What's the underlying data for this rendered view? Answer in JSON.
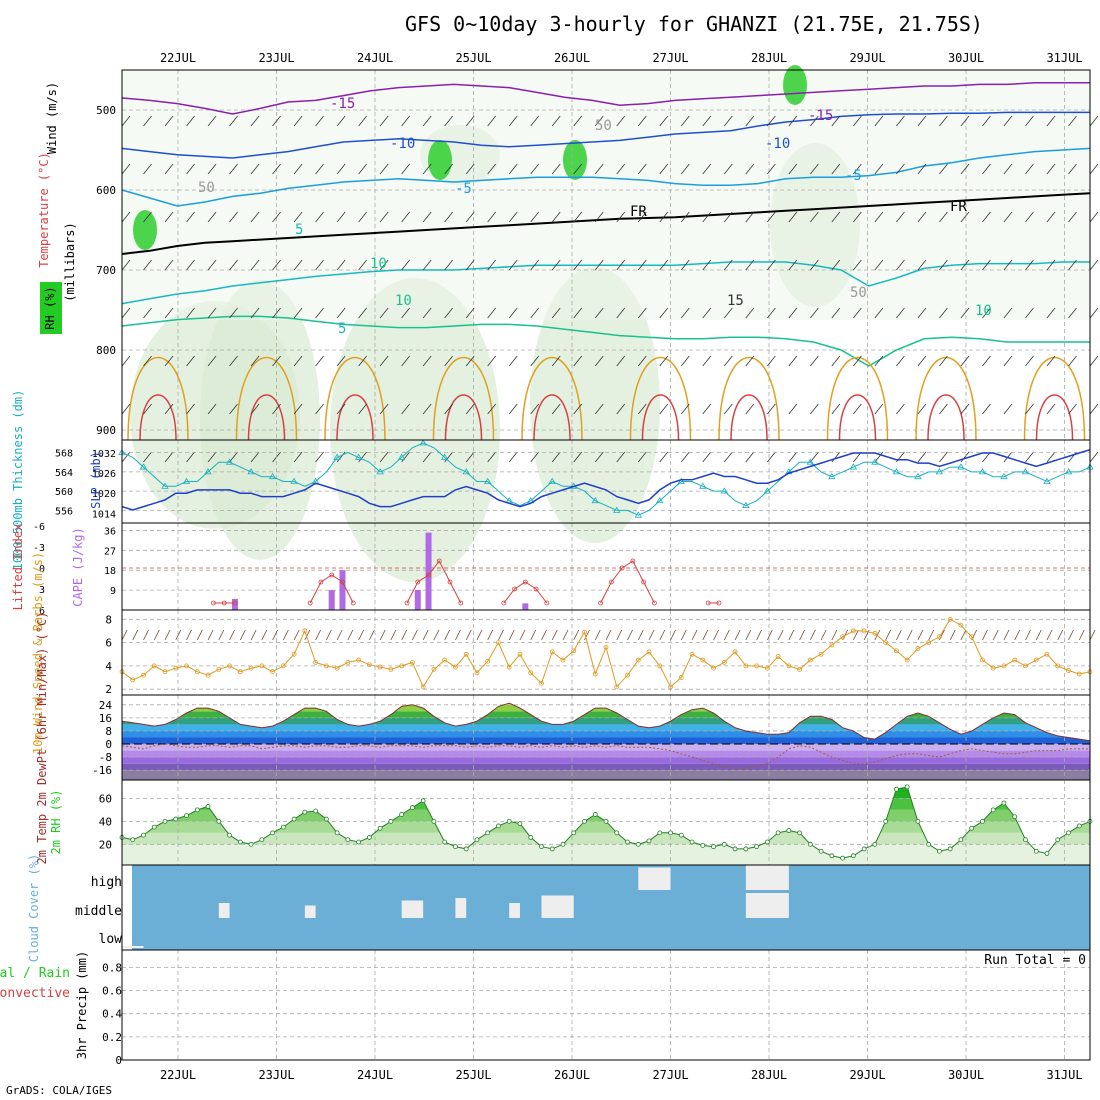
{
  "title": "GFS 0~10day 3-hourly for GHANZI (21.75E, 21.75S)",
  "footer": "GrADS: COLA/IGES",
  "colors": {
    "grid": "#aaaaaa",
    "rh": "#22cc22",
    "temp_cyan": "#1ab0c0",
    "slp": "#1f3fc8",
    "cape": "#b06ae6",
    "li": "#d84040",
    "wind10": "#e09a20",
    "cloud": "#6baed6"
  },
  "chart_data": [
    {
      "type": "line",
      "panel": "upper-air",
      "ylabel": "(millibars)",
      "side_labels": [
        "Wind (m/s)",
        "Temperature (°C)",
        "RH (%)"
      ],
      "x_ticks": [
        "22JUL",
        "23JUL",
        "24JUL",
        "25JUL",
        "26JUL",
        "27JUL",
        "28JUL",
        "29JUL",
        "30JUL",
        "31JUL"
      ],
      "y_ticks": [
        500,
        600,
        700,
        800,
        900
      ],
      "contour_labels": [
        "-15",
        "-15",
        "-10",
        "-10",
        "-5",
        "-5",
        "FR",
        "FR",
        "5",
        "10",
        "10",
        "15",
        "5",
        "50",
        "50",
        "50",
        "10"
      ],
      "series": [
        {
          "name": "-15",
          "values": [
            485,
            488,
            492,
            498,
            505,
            498,
            490,
            488,
            482,
            476,
            472,
            470,
            468,
            470,
            472,
            478,
            484,
            488,
            494,
            492,
            488,
            486,
            484,
            482,
            480,
            478,
            476,
            474,
            472,
            470,
            470,
            468,
            468,
            466,
            466,
            466
          ]
        },
        {
          "name": "-10",
          "values": [
            548,
            552,
            556,
            558,
            560,
            556,
            552,
            546,
            540,
            538,
            536,
            538,
            540,
            544,
            546,
            544,
            542,
            540,
            538,
            534,
            530,
            528,
            526,
            520,
            515,
            512,
            508,
            506,
            505,
            505,
            504,
            504,
            503,
            503,
            503,
            503
          ]
        },
        {
          "name": "-5",
          "values": [
            600,
            610,
            620,
            615,
            608,
            604,
            598,
            594,
            590,
            588,
            586,
            588,
            590,
            588,
            586,
            584,
            584,
            584,
            586,
            588,
            592,
            594,
            594,
            592,
            586,
            584,
            584,
            582,
            578,
            570,
            566,
            560,
            556,
            552,
            550,
            548
          ]
        },
        {
          "name": "FR",
          "values": [
            680,
            676,
            670,
            666,
            664,
            662,
            660,
            658,
            656,
            654,
            652,
            650,
            648,
            646,
            644,
            642,
            640,
            638,
            636,
            635,
            634,
            632,
            630,
            628,
            626,
            624,
            622,
            620,
            618,
            616,
            614,
            612,
            610,
            608,
            606,
            604
          ]
        },
        {
          "name": "5",
          "values": [
            742,
            736,
            730,
            726,
            720,
            716,
            712,
            708,
            705,
            702,
            700,
            700,
            700,
            698,
            696,
            694,
            694,
            694,
            694,
            694,
            694,
            692,
            690,
            690,
            690,
            694,
            700,
            720,
            710,
            698,
            694,
            692,
            692,
            692,
            690,
            690
          ]
        },
        {
          "name": "10",
          "values": [
            770,
            766,
            762,
            760,
            758,
            758,
            760,
            764,
            768,
            770,
            772,
            772,
            770,
            768,
            768,
            770,
            774,
            778,
            782,
            784,
            786,
            786,
            784,
            784,
            786,
            790,
            800,
            820,
            800,
            786,
            784,
            786,
            790,
            790,
            790,
            790
          ]
        }
      ]
    },
    {
      "type": "line",
      "panel": "thickness-slp",
      "ylabel_left": "1000-500mb Thickness (dm)",
      "ylabel_right": "SLP (mb)",
      "y_ticks_left": [
        556,
        560,
        564,
        568
      ],
      "y_ticks_right": [
        1014,
        1020,
        1026,
        1032
      ],
      "series": [
        {
          "name": "Thickness",
          "values": [
            568,
            567,
            565,
            563,
            561,
            561,
            562,
            562,
            564,
            566,
            566,
            565,
            564,
            563,
            563,
            562,
            562,
            561,
            562,
            564,
            567,
            568,
            567,
            566,
            564,
            565,
            567,
            569,
            570,
            569,
            567,
            565,
            564,
            562,
            562,
            560,
            558,
            557,
            558,
            560,
            562,
            561,
            561,
            560,
            558,
            557,
            556,
            556,
            555,
            556,
            558,
            560,
            562,
            562,
            561,
            560,
            560,
            558,
            557,
            558,
            560,
            562,
            564,
            566,
            566,
            564,
            563,
            564,
            565,
            566,
            566,
            565,
            564,
            563,
            563,
            564,
            564,
            565,
            565,
            564,
            564,
            563,
            563,
            564,
            564,
            563,
            562,
            563,
            564,
            564,
            565
          ]
        },
        {
          "name": "SLP",
          "values": [
            1016,
            1015,
            1016,
            1017,
            1018,
            1020,
            1020,
            1021,
            1021,
            1021,
            1021,
            1020,
            1020,
            1019,
            1019,
            1019,
            1020,
            1021,
            1023,
            1022,
            1021,
            1020,
            1019,
            1017,
            1016,
            1016,
            1017,
            1018,
            1019,
            1019,
            1019,
            1021,
            1022,
            1021,
            1020,
            1018,
            1017,
            1016,
            1017,
            1019,
            1020,
            1021,
            1022,
            1023,
            1022,
            1021,
            1019,
            1018,
            1017,
            1018,
            1021,
            1023,
            1024,
            1024,
            1025,
            1026,
            1025,
            1025,
            1024,
            1023,
            1023,
            1024,
            1026,
            1027,
            1028,
            1029,
            1030,
            1031,
            1032,
            1032,
            1032,
            1031,
            1030,
            1030,
            1029,
            1029,
            1028,
            1029,
            1030,
            1031,
            1032,
            1032,
            1031,
            1030,
            1029,
            1028,
            1029,
            1030,
            1031,
            1032,
            1033
          ]
        }
      ]
    },
    {
      "type": "bar",
      "panel": "li-cape",
      "ylabel_left": "Lifted Index",
      "ylabel_right": "CAPE (J/kg)",
      "y_ticks_left": [
        "-6",
        "-3",
        "0",
        "3",
        "6"
      ],
      "y_ticks_right": [
        9,
        18,
        27,
        36
      ],
      "cape": [
        [
          10.5,
          5
        ],
        [
          19.5,
          9
        ],
        [
          20.5,
          18
        ],
        [
          27.5,
          9
        ],
        [
          28.5,
          35
        ],
        [
          37.5,
          3
        ]
      ],
      "li": [
        [
          8.5,
          5
        ],
        [
          9.5,
          5
        ],
        [
          10.5,
          5
        ],
        [
          17.5,
          5
        ],
        [
          18.5,
          2
        ],
        [
          19.5,
          1
        ],
        [
          20.5,
          2
        ],
        [
          21.5,
          5
        ],
        [
          26.5,
          5
        ],
        [
          27.5,
          2
        ],
        [
          28.5,
          1
        ],
        [
          29.5,
          -1
        ],
        [
          30.5,
          2
        ],
        [
          31.5,
          5
        ],
        [
          35.5,
          5
        ],
        [
          36.5,
          3
        ],
        [
          37.5,
          2
        ],
        [
          38.5,
          3
        ],
        [
          39.5,
          5
        ],
        [
          44.5,
          5
        ],
        [
          45.5,
          2
        ],
        [
          46.5,
          0
        ],
        [
          47.5,
          -1
        ],
        [
          48.5,
          2
        ],
        [
          49.5,
          5
        ],
        [
          54.5,
          5
        ],
        [
          55.5,
          5
        ]
      ]
    },
    {
      "type": "line",
      "panel": "wind10",
      "ylabel": "10m Wind Speed & Barbs (m/s)",
      "y_ticks": [
        2,
        4,
        6,
        8
      ],
      "series": [
        {
          "name": "Speed",
          "values": [
            3.5,
            2.8,
            3.2,
            4,
            3.5,
            3.8,
            4,
            3.5,
            3.2,
            3.7,
            4,
            3.5,
            3.8,
            4,
            3.5,
            4,
            5,
            7,
            4.3,
            4,
            3.8,
            4.3,
            4.5,
            4.1,
            3.9,
            3.7,
            4,
            4.3,
            2.2,
            3.7,
            4.5,
            3.9,
            5,
            3.4,
            4.4,
            6,
            3.9,
            5,
            3.4,
            2.5,
            5.2,
            4.5,
            5.3,
            6.9,
            3.3,
            5.6,
            2.2,
            3.2,
            4.5,
            5.2,
            4,
            2.2,
            3,
            5,
            4.5,
            3.8,
            4.3,
            5.2,
            4,
            4,
            3.8,
            4.8,
            4,
            3.7,
            4.5,
            5,
            5.8,
            6.5,
            7,
            7,
            6.8,
            6,
            5.3,
            4.5,
            5.5,
            6,
            6.5,
            8,
            7.5,
            6.5,
            4.5,
            3.8,
            4,
            4.5,
            4,
            4.5,
            5,
            4,
            3.6,
            3.3,
            3.5
          ]
        }
      ]
    },
    {
      "type": "area",
      "panel": "temp2m",
      "ylabel": "2m Temp 2m DewPt (6hr Min/Max) (°C)",
      "y_ticks": [
        -16,
        -8,
        0,
        8,
        16,
        24
      ],
      "series": [
        {
          "name": "Temp",
          "values": [
            14,
            13,
            12,
            11,
            12,
            15,
            19,
            22,
            22,
            20,
            16,
            12,
            11,
            10,
            11,
            14,
            18,
            22,
            22,
            20,
            15,
            12,
            11,
            12,
            14,
            18,
            23,
            24,
            22,
            17,
            13,
            11,
            12,
            14,
            18,
            23,
            25,
            22,
            18,
            14,
            12,
            12,
            14,
            18,
            22,
            22,
            19,
            15,
            11,
            10,
            11,
            14,
            18,
            21,
            22,
            19,
            14,
            10,
            8,
            7,
            6,
            6,
            7,
            13,
            17,
            17,
            15,
            10,
            8,
            4,
            3,
            7,
            12,
            17,
            19,
            17,
            13,
            9,
            6,
            8,
            12,
            16,
            19,
            18,
            13,
            10,
            7,
            5,
            4,
            3,
            2
          ]
        },
        {
          "name": "DewPt",
          "values": [
            -1,
            -2,
            -3,
            -1,
            0,
            -1,
            -2,
            -2,
            -1,
            -1,
            -2,
            -1,
            -1,
            -3,
            -2,
            -1,
            -1,
            -2,
            -1,
            -1,
            -2,
            -2,
            -1,
            -1,
            -2,
            -1,
            -1,
            -1,
            -2,
            -1,
            -1,
            -1,
            -2,
            -1,
            -2,
            -1,
            -1,
            -2,
            -1,
            -2,
            -1,
            -2,
            -1,
            -2,
            -1,
            -2,
            -1,
            -2,
            -2,
            -2,
            -3,
            -4,
            -6,
            -8,
            -10,
            -12,
            -14,
            -15,
            -15,
            -14,
            -12,
            -8,
            -3,
            -1,
            -2,
            -5,
            -8,
            -10,
            -12,
            -12,
            -11,
            -9,
            -7,
            -6,
            -6,
            -7,
            -8,
            -6,
            -4,
            -3,
            -4,
            -5,
            -6,
            -6,
            -5,
            -4,
            -4,
            -4,
            -3,
            -3,
            -3
          ]
        }
      ]
    },
    {
      "type": "area",
      "panel": "rh2m",
      "ylabel": "2m RH (%)",
      "y_ticks": [
        20,
        40,
        60
      ],
      "series": [
        {
          "name": "RH",
          "values": [
            26,
            24,
            28,
            35,
            40,
            42,
            45,
            50,
            53,
            40,
            28,
            22,
            20,
            24,
            30,
            35,
            42,
            48,
            49,
            42,
            30,
            24,
            22,
            26,
            34,
            40,
            46,
            52,
            58,
            40,
            22,
            18,
            16,
            24,
            30,
            36,
            40,
            38,
            26,
            18,
            16,
            20,
            30,
            40,
            46,
            40,
            30,
            22,
            20,
            23,
            30,
            30,
            28,
            22,
            19,
            18,
            20,
            16,
            16,
            18,
            22,
            30,
            32,
            30,
            20,
            14,
            10,
            8,
            10,
            16,
            20,
            40,
            68,
            70,
            40,
            20,
            14,
            16,
            24,
            34,
            40,
            50,
            56,
            44,
            24,
            14,
            12,
            24,
            30,
            36,
            40
          ]
        }
      ]
    },
    {
      "type": "heatmap",
      "panel": "cloud",
      "ylabel": "Cloud Cover (%)",
      "y_ticks": [
        "high",
        "middle",
        "low"
      ],
      "blocks": [
        {
          "level": "low",
          "x0": 0,
          "x1": 2,
          "h": 0.25
        },
        {
          "level": "middle",
          "x0": 9,
          "x1": 10,
          "h": 0.6
        },
        {
          "level": "middle",
          "x0": 17,
          "x1": 18,
          "h": 0.5
        },
        {
          "level": "middle",
          "x0": 26,
          "x1": 28,
          "h": 0.7
        },
        {
          "level": "middle",
          "x0": 31,
          "x1": 32,
          "h": 0.8
        },
        {
          "level": "middle",
          "x0": 36,
          "x1": 37,
          "h": 0.6
        },
        {
          "level": "middle",
          "x0": 39,
          "x1": 42,
          "h": 0.9
        },
        {
          "level": "high",
          "x0": 48,
          "x1": 51,
          "h": 0.9
        },
        {
          "level": "high",
          "x0": 58,
          "x1": 62,
          "h": 1.0
        },
        {
          "level": "middle",
          "x0": 58,
          "x1": 62,
          "h": 1.0
        }
      ]
    },
    {
      "type": "bar",
      "panel": "precip",
      "ylabel": "3hr Precip (mm)",
      "side_labels": [
        "Total / Rain",
        "Convective"
      ],
      "y_ticks": [
        0,
        0.2,
        0.4,
        0.6,
        0.8
      ],
      "annotation": "Run Total = 0",
      "x_ticks": [
        "22JUL",
        "23JUL",
        "24JUL",
        "25JUL",
        "26JUL",
        "27JUL",
        "28JUL",
        "29JUL",
        "30JUL",
        "31JUL"
      ]
    }
  ]
}
